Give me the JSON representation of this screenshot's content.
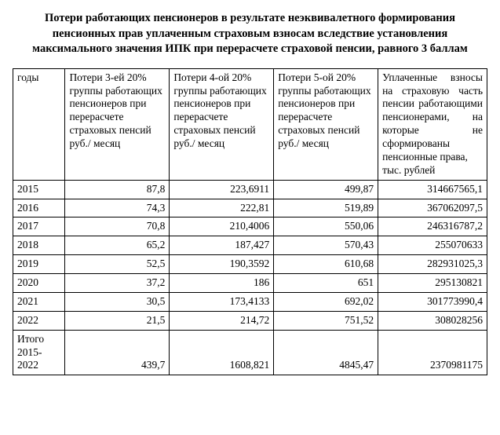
{
  "title": "Потери работающих пенсионеров в результате неэквивалетного формирования пенсионных прав уплаченным страховым взносам вследствие установления максимального значения ИПК при перерасчете страховой пенсии, равного 3 баллам",
  "table": {
    "headers": {
      "c0": "годы",
      "c1": "Потери 3-ей 20% группы работающих пенсионеров при перерасчете страховых пенсий\nруб./ месяц",
      "c2": "Потери 4-ой 20% группы работающих пенсионеров при перерасчете страховых пенсий\nруб./ месяц",
      "c3": "Потери 5-ой 20% группы работающих пенсионеров при перерасчете страховых пенсий\nруб./ месяц",
      "c4": "Уплаченные взносы на страховую часть пенсии работающими пенсионерами, на которые не сформированы пенсионные права,\nтыс. рублей"
    },
    "rows": [
      {
        "year": "2015",
        "c1": "87,8",
        "c2": "223,6911",
        "c3": "499,87",
        "c4": "314667565,1"
      },
      {
        "year": "2016",
        "c1": "74,3",
        "c2": "222,81",
        "c3": "519,89",
        "c4": "367062097,5"
      },
      {
        "year": "2017",
        "c1": "70,8",
        "c2": "210,4006",
        "c3": "550,06",
        "c4": "246316787,2"
      },
      {
        "year": "2018",
        "c1": "65,2",
        "c2": "187,427",
        "c3": "570,43",
        "c4": "255070633"
      },
      {
        "year": "2019",
        "c1": "52,5",
        "c2": "190,3592",
        "c3": "610,68",
        "c4": "282931025,3"
      },
      {
        "year": "2020",
        "c1": "37,2",
        "c2": "186",
        "c3": "651",
        "c4": "295130821"
      },
      {
        "year": "2021",
        "c1": "30,5",
        "c2": "173,4133",
        "c3": "692,02",
        "c4": "301773990,4"
      },
      {
        "year": "2022",
        "c1": "21,5",
        "c2": "214,72",
        "c3": "751,52",
        "c4": "308028256"
      }
    ],
    "total": {
      "label": "Итого\n2015-\n2022",
      "c1": "439,7",
      "c2": "1608,821",
      "c3": "4845,47",
      "c4": "2370981175"
    }
  }
}
